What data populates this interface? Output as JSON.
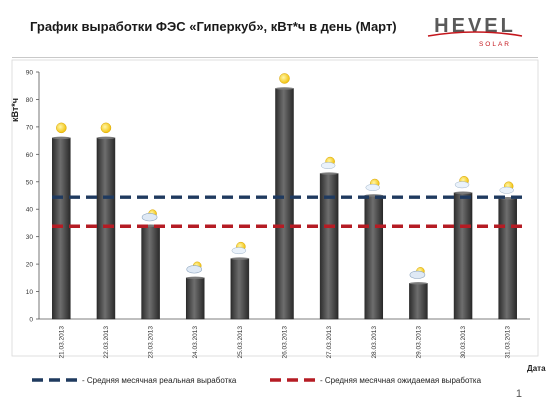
{
  "slide": {
    "title": "График выработки ФЭС «Гиперкуб», кВт*ч в день (Март)",
    "page_number": "1"
  },
  "logo": {
    "brand_text": "HEVEL",
    "sub_text": "SOLAR",
    "colors": {
      "text": "#5a5a5a",
      "accent": "#c4161c"
    }
  },
  "chart_data": {
    "type": "bar",
    "ylabel": "кВт*ч",
    "xlabel": "Дата",
    "ylim": [
      0,
      90
    ],
    "yticks": [
      0,
      10,
      20,
      30,
      40,
      50,
      60,
      70,
      80,
      90
    ],
    "categories": [
      "21.03.2013",
      "22.03.2013",
      "23.03.2013",
      "24.03.2013",
      "25.03.2013",
      "26.03.2013",
      "27.03.2013",
      "28.03.2013",
      "29.03.2013",
      "30.03.2013",
      "31.03.2013"
    ],
    "values": [
      66,
      66,
      34,
      15,
      22,
      84,
      53,
      45,
      13,
      46,
      44
    ],
    "weather_icons": [
      "sun-icon",
      "sun-icon",
      "cloudy-icon",
      "cloudy-icon",
      "partly-cloudy-icon",
      "sun-icon",
      "partly-cloudy-icon",
      "partly-cloudy-icon",
      "cloudy-icon",
      "partly-cloudy-icon",
      "partly-cloudy-icon"
    ],
    "reference_lines": [
      {
        "name": "- Средняя месячная реальная выработка",
        "value": 44.4,
        "color": "#1f3a5f"
      },
      {
        "name": "- Средняя месячная ожидаемая выработка",
        "value": 33.8,
        "color": "#b51c24"
      }
    ],
    "bar_color": "#4a4a4a",
    "grid": false
  }
}
